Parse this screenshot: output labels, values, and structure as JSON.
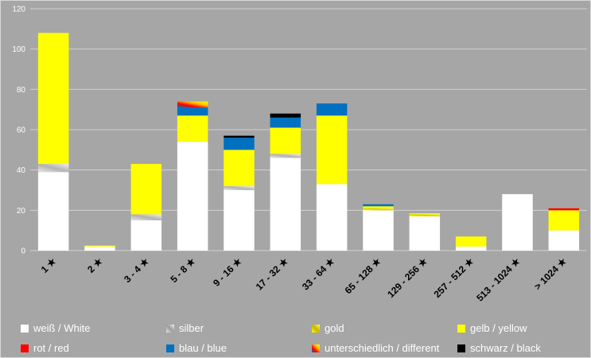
{
  "chart_data": {
    "type": "bar",
    "stacked": true,
    "categories": [
      "1 ★",
      "2 ★",
      "3 - 4 ★",
      "5 - 8 ★",
      "9 - 16 ★",
      "17 - 32 ★",
      "33 - 64 ★",
      "65 - 128 ★",
      "129 - 256 ★",
      "257 - 512 ★",
      "513 - 1024 ★",
      "> 1024 ★"
    ],
    "ylim": [
      0,
      120
    ],
    "yticks": [
      0,
      20,
      40,
      60,
      80,
      100,
      120
    ],
    "grid": true,
    "legend_position": "bottom",
    "series": [
      {
        "name": "weiß / White",
        "color": "#ffffff",
        "values": [
          39,
          2,
          15,
          54,
          30,
          46,
          33,
          20,
          17,
          2,
          28,
          10
        ]
      },
      {
        "name": "silber",
        "color": "#d9d9d9",
        "values": [
          4,
          0,
          3,
          0,
          2,
          2,
          0,
          0,
          0,
          0,
          0,
          0
        ]
      },
      {
        "name": "gold",
        "color": "#f5e84a",
        "values": [
          0,
          0,
          0,
          0,
          0,
          0,
          0,
          1,
          1,
          0,
          0,
          0
        ]
      },
      {
        "name": "gelb / yellow",
        "color": "#ffff00",
        "values": [
          65,
          0.5,
          25,
          13,
          18,
          13,
          34,
          1,
          0.5,
          5,
          0,
          10
        ]
      },
      {
        "name": "rot / red",
        "color": "#ff0000",
        "values": [
          0,
          0,
          0,
          0,
          0,
          0,
          0,
          0,
          0,
          0,
          0,
          1
        ]
      },
      {
        "name": "blau / blue",
        "color": "#0070c0",
        "values": [
          0,
          0,
          0,
          4,
          6,
          5,
          6,
          1,
          0,
          0,
          0,
          0
        ]
      },
      {
        "name": "unterschiedlich / different",
        "color": "#d04a8a",
        "values": [
          0,
          0,
          0,
          3,
          0,
          0,
          0,
          0,
          0,
          0,
          0,
          0
        ]
      },
      {
        "name": "schwarz / black",
        "color": "#000000",
        "values": [
          0,
          0,
          0,
          0,
          1,
          2,
          0,
          0,
          0,
          0,
          0,
          0
        ]
      }
    ]
  }
}
